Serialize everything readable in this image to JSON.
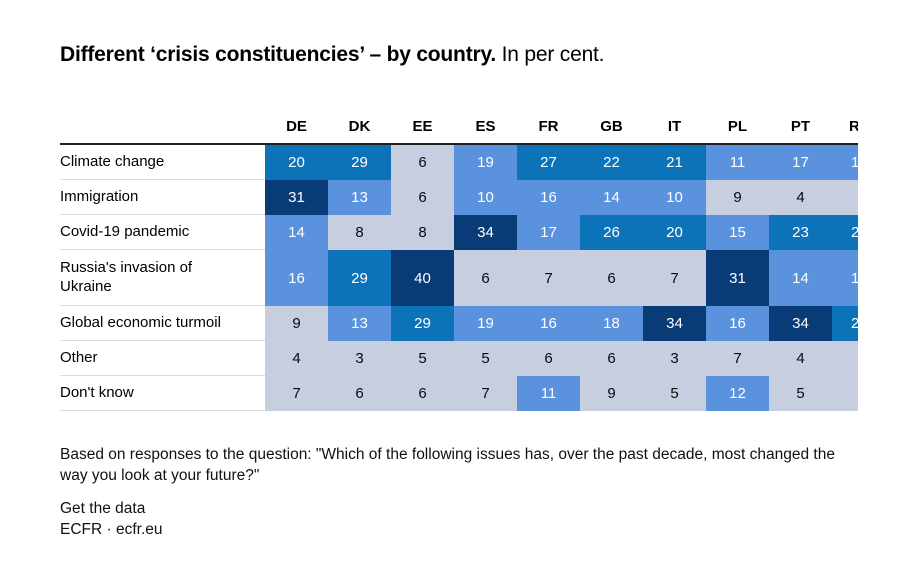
{
  "title": {
    "bold": "Different ‘crisis constituencies’ – by country.",
    "regular": "In per cent."
  },
  "chart_data": {
    "type": "heatmap",
    "title": "Different ‘crisis constituencies’ – by country. In per cent.",
    "columns": [
      "DE",
      "DK",
      "EE",
      "ES",
      "FR",
      "GB",
      "IT",
      "PL",
      "PT"
    ],
    "clipped_column": {
      "header": "R",
      "note": "tenth country column is cut off at the right edge of the image; only partial digits visible",
      "cells": [
        {
          "text": "1",
          "color": "light"
        },
        {
          "text": "",
          "color": "gray"
        },
        {
          "text": "2",
          "color": "medium"
        },
        {
          "text": "1",
          "color": "light"
        },
        {
          "text": "2",
          "color": "medium"
        },
        {
          "text": "",
          "color": "gray"
        },
        {
          "text": "",
          "color": "gray"
        }
      ]
    },
    "rows": [
      {
        "label": "Climate change",
        "values": [
          20,
          29,
          6,
          19,
          27,
          22,
          21,
          11,
          17
        ],
        "tall": false
      },
      {
        "label": "Immigration",
        "values": [
          31,
          13,
          6,
          10,
          16,
          14,
          10,
          9,
          4
        ],
        "tall": false
      },
      {
        "label": "Covid-19 pandemic",
        "values": [
          14,
          8,
          8,
          34,
          17,
          26,
          20,
          15,
          23
        ],
        "tall": false
      },
      {
        "label": "Russia's invasion of Ukraine",
        "values": [
          16,
          29,
          40,
          6,
          7,
          6,
          7,
          31,
          14
        ],
        "tall": true
      },
      {
        "label": "Global economic turmoil",
        "values": [
          9,
          13,
          29,
          19,
          16,
          18,
          34,
          16,
          34
        ],
        "tall": false
      },
      {
        "label": "Other",
        "values": [
          4,
          3,
          5,
          5,
          6,
          6,
          3,
          7,
          4
        ],
        "tall": false
      },
      {
        "label": "Don't know",
        "values": [
          7,
          6,
          6,
          7,
          11,
          9,
          5,
          12,
          5
        ],
        "tall": false
      }
    ],
    "color_scale": {
      "gray": "#c6cedf",
      "light": "#5b92de",
      "medium": "#0d73b9",
      "navy": "#093b76",
      "buckets": "0-9 gray, 10-19 light blue, 20-29 medium blue, 30+ navy"
    },
    "legend": "none",
    "grid": "off"
  },
  "footer": {
    "note": "Based on responses to the question: \"Which of the following issues has, over the past decade, most changed the way you look at your future?\"",
    "get_data": "Get the data",
    "source_org": "ECFR",
    "source_sep": " · ",
    "source_link": "ecfr.eu"
  }
}
